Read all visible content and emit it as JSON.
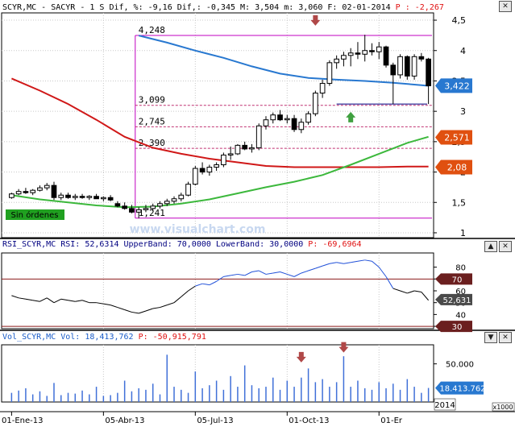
{
  "window": {
    "close_label": "✕",
    "maximize_label": "▲",
    "minimize_label": "▼"
  },
  "colors": {
    "background": "#ffffff",
    "grid": "#c8c8c8",
    "frame": "#000000",
    "price_header_label": "#000000",
    "price_header_value": "#e01010",
    "rsi_header_label": "#000080",
    "rsi_header_value": "#e01010",
    "vol_header_label": "#1a5cc8",
    "vol_header_value": "#e01010",
    "candle_up_fill": "#ffffff",
    "candle_down_fill": "#000000",
    "candle_outline": "#000000",
    "blue_ma": "#2878d0",
    "red_ma": "#d01818",
    "green_ma": "#3cb83c",
    "fib_lines": "#c03070",
    "box_frame": "#c000c0",
    "support_line": "#000080",
    "rsi_line_high": "#2050d8",
    "rsi_line_low": "#000000",
    "rsi_band_line": "#8b1a1a",
    "volume_bars": "#4070d8",
    "arrow_down": "#b04848",
    "arrow_up": "#40a040",
    "tag_blue": "#2878d0",
    "tag_red": "#e05010",
    "tag_dark": "#6b1f1f",
    "tag_gray": "#4a4a4a",
    "badge_green_bg": "#20a020",
    "watermark": "#c8d8f0"
  },
  "headers": {
    "price": {
      "label": "SCYR,MC - SACYR -  1 S Dif, %: -9,16 Dif,: -0,345 M: 3,504 m: 3,060 F: 02-01-2014",
      "value": "P : -2,267"
    },
    "rsi": {
      "label": "RSI_SCYR,MC RSI: 52,6314 UpperBand: 70,0000 LowerBand: 30,0000",
      "value": "P: -69,6964"
    },
    "vol": {
      "label": "Vol_SCYR,MC Vol: 18,413,762",
      "value": "P: -50,915,791"
    }
  },
  "watermark": "www.visualchart.com",
  "badge": "Sin órdenes",
  "chart_data": [
    {
      "type": "candlestick",
      "panel": "price",
      "ylim": [
        0.92,
        4.62
      ],
      "ytick_labels": [
        "4,5",
        "4",
        "3,5",
        "3",
        "2,5",
        "2",
        "1,5",
        "1"
      ],
      "ytick_values": [
        4.5,
        4.0,
        3.5,
        3.0,
        2.5,
        2.0,
        1.5,
        1.0
      ],
      "xtick_labels": [
        "01-Ene-13",
        "05-Abr-13",
        "05-Jul-13",
        "01-Oct-13",
        "01-Er"
      ],
      "year_label": "2014",
      "fib_levels": [
        {
          "label": "4,248",
          "value": 4.248
        },
        {
          "label": "3,099",
          "value": 3.099
        },
        {
          "label": "2,745",
          "value": 2.745
        },
        {
          "label": "2,390",
          "value": 2.39
        },
        {
          "label": "1,241",
          "value": 1.241
        }
      ],
      "price_tags": [
        {
          "label": "3,422",
          "value": 3.422,
          "color": "tag_blue"
        },
        {
          "label": "2,571",
          "value": 2.571,
          "color": "tag_red"
        },
        {
          "label": "2,08",
          "value": 2.08,
          "color": "tag_red"
        }
      ],
      "support_level": 3.12,
      "box": {
        "x_start_week": 18,
        "x_end_week": 53,
        "top": 4.248,
        "bottom": 1.241
      },
      "arrows": [
        {
          "type": "down",
          "week": 43,
          "value": 4.45
        },
        {
          "type": "up",
          "week": 48,
          "value": 2.95
        }
      ],
      "ohlc": [
        [
          1.58,
          1.66,
          1.56,
          1.64
        ],
        [
          1.64,
          1.72,
          1.62,
          1.68
        ],
        [
          1.68,
          1.74,
          1.64,
          1.66
        ],
        [
          1.66,
          1.72,
          1.62,
          1.7
        ],
        [
          1.7,
          1.78,
          1.68,
          1.74
        ],
        [
          1.74,
          1.82,
          1.7,
          1.78
        ],
        [
          1.78,
          1.84,
          1.54,
          1.58
        ],
        [
          1.58,
          1.66,
          1.54,
          1.62
        ],
        [
          1.62,
          1.66,
          1.56,
          1.58
        ],
        [
          1.58,
          1.64,
          1.54,
          1.6
        ],
        [
          1.6,
          1.64,
          1.56,
          1.58
        ],
        [
          1.58,
          1.62,
          1.54,
          1.6
        ],
        [
          1.6,
          1.64,
          1.56,
          1.56
        ],
        [
          1.56,
          1.6,
          1.52,
          1.58
        ],
        [
          1.58,
          1.62,
          1.52,
          1.54
        ],
        [
          1.48,
          1.52,
          1.42,
          1.44
        ],
        [
          1.44,
          1.5,
          1.38,
          1.4
        ],
        [
          1.4,
          1.46,
          1.32,
          1.34
        ],
        [
          1.34,
          1.42,
          1.24,
          1.38
        ],
        [
          1.38,
          1.46,
          1.34,
          1.4
        ],
        [
          1.4,
          1.48,
          1.36,
          1.44
        ],
        [
          1.44,
          1.52,
          1.4,
          1.48
        ],
        [
          1.48,
          1.56,
          1.44,
          1.52
        ],
        [
          1.52,
          1.6,
          1.48,
          1.56
        ],
        [
          1.56,
          1.66,
          1.52,
          1.62
        ],
        [
          1.62,
          1.84,
          1.6,
          1.8
        ],
        [
          1.8,
          2.1,
          1.78,
          2.06
        ],
        [
          2.06,
          2.16,
          1.96,
          2.0
        ],
        [
          2.0,
          2.12,
          1.94,
          2.08
        ],
        [
          2.08,
          2.16,
          2.02,
          2.12
        ],
        [
          2.12,
          2.32,
          2.08,
          2.28
        ],
        [
          2.28,
          2.42,
          2.2,
          2.3
        ],
        [
          2.3,
          2.46,
          2.28,
          2.44
        ],
        [
          2.44,
          2.5,
          2.36,
          2.38
        ],
        [
          2.38,
          2.46,
          2.32,
          2.4
        ],
        [
          2.4,
          2.8,
          2.36,
          2.76
        ],
        [
          2.76,
          2.92,
          2.7,
          2.86
        ],
        [
          2.86,
          2.98,
          2.8,
          2.94
        ],
        [
          2.94,
          3.02,
          2.84,
          2.86
        ],
        [
          2.86,
          2.94,
          2.8,
          2.88
        ],
        [
          2.88,
          2.94,
          2.66,
          2.7
        ],
        [
          2.7,
          2.88,
          2.64,
          2.82
        ],
        [
          2.82,
          3.0,
          2.78,
          2.96
        ],
        [
          2.96,
          3.34,
          2.92,
          3.3
        ],
        [
          3.3,
          3.52,
          3.22,
          3.46
        ],
        [
          3.46,
          3.84,
          3.42,
          3.8
        ],
        [
          3.8,
          3.92,
          3.7,
          3.86
        ],
        [
          3.86,
          3.98,
          3.74,
          3.92
        ],
        [
          3.92,
          4.04,
          3.74,
          3.96
        ],
        [
          3.96,
          4.14,
          3.86,
          3.94
        ],
        [
          3.94,
          4.26,
          3.82,
          4.0
        ],
        [
          4.0,
          4.12,
          3.92,
          3.98
        ],
        [
          3.98,
          4.14,
          3.86,
          4.06
        ],
        [
          4.06,
          4.08,
          3.72,
          3.76
        ],
        [
          3.76,
          3.8,
          3.12,
          3.6
        ],
        [
          3.6,
          3.94,
          3.54,
          3.9
        ],
        [
          3.9,
          3.92,
          3.52,
          3.58
        ],
        [
          3.58,
          3.94,
          3.52,
          3.9
        ],
        [
          3.9,
          3.96,
          3.82,
          3.86
        ],
        [
          3.86,
          3.88,
          3.12,
          3.42
        ]
      ],
      "ma_blue": [
        [
          18,
          4.248
        ],
        [
          22,
          4.13
        ],
        [
          26,
          4.0
        ],
        [
          30,
          3.88
        ],
        [
          34,
          3.74
        ],
        [
          38,
          3.62
        ],
        [
          42,
          3.55
        ],
        [
          46,
          3.52
        ],
        [
          50,
          3.5
        ],
        [
          54,
          3.47
        ],
        [
          57,
          3.44
        ],
        [
          59,
          3.42
        ]
      ],
      "ma_red": [
        [
          0,
          3.54
        ],
        [
          4,
          3.34
        ],
        [
          8,
          3.12
        ],
        [
          12,
          2.86
        ],
        [
          16,
          2.58
        ],
        [
          20,
          2.4
        ],
        [
          24,
          2.3
        ],
        [
          28,
          2.22
        ],
        [
          32,
          2.16
        ],
        [
          36,
          2.1
        ],
        [
          40,
          2.08
        ],
        [
          44,
          2.08
        ],
        [
          48,
          2.08
        ],
        [
          52,
          2.08
        ],
        [
          56,
          2.09
        ],
        [
          59,
          2.09
        ]
      ],
      "ma_green": [
        [
          0,
          1.62
        ],
        [
          4,
          1.55
        ],
        [
          8,
          1.5
        ],
        [
          12,
          1.45
        ],
        [
          16,
          1.42
        ],
        [
          20,
          1.43
        ],
        [
          24,
          1.48
        ],
        [
          28,
          1.55
        ],
        [
          32,
          1.65
        ],
        [
          36,
          1.75
        ],
        [
          40,
          1.84
        ],
        [
          44,
          1.95
        ],
        [
          48,
          2.12
        ],
        [
          52,
          2.3
        ],
        [
          56,
          2.48
        ],
        [
          59,
          2.58
        ]
      ]
    },
    {
      "type": "line",
      "panel": "rsi",
      "ylim": [
        28,
        92
      ],
      "ytick_labels": [
        "80",
        "70",
        "60",
        "50",
        "40",
        "30"
      ],
      "ytick_values": [
        80,
        70,
        60,
        50,
        40,
        30
      ],
      "bands": [
        70,
        30
      ],
      "value_tags": [
        {
          "label": "70",
          "value": 70,
          "color": "tag_dark"
        },
        {
          "label": "52,631",
          "value": 52.631,
          "color": "tag_gray"
        },
        {
          "label": "30",
          "value": 30,
          "color": "tag_dark"
        }
      ],
      "values": [
        56,
        54,
        53,
        52,
        51,
        54,
        50,
        53,
        52,
        51,
        52,
        50,
        50,
        49,
        48,
        46,
        44,
        42,
        41,
        43,
        45,
        46,
        48,
        50,
        55,
        60,
        64,
        66,
        65,
        68,
        72,
        73,
        74,
        73,
        76,
        77,
        74,
        75,
        76,
        74,
        72,
        75,
        77,
        79,
        81,
        83,
        84,
        83,
        84,
        85,
        86,
        85,
        80,
        72,
        62,
        60,
        58,
        60,
        59,
        52
      ]
    },
    {
      "type": "bar",
      "panel": "volume",
      "ylim": [
        0,
        75000000
      ],
      "ytick_labels": [
        "50.000"
      ],
      "ytick_values": [
        50000000
      ],
      "value_tag": {
        "label": "18.413.762",
        "value": 18413762,
        "color": "tag_blue"
      },
      "scale_label": "x1000",
      "arrows": [
        {
          "type": "down",
          "week": 41,
          "value": 55000000
        },
        {
          "type": "down",
          "week": 47,
          "value": 68000000
        }
      ],
      "values": [
        12000000,
        15000000,
        18000000,
        10000000,
        14000000,
        8000000,
        25000000,
        9000000,
        12000000,
        11000000,
        15000000,
        10000000,
        20000000,
        8000000,
        9000000,
        12000000,
        28000000,
        14000000,
        18000000,
        16000000,
        24000000,
        10000000,
        62000000,
        20000000,
        16000000,
        12000000,
        40000000,
        18000000,
        22000000,
        28000000,
        16000000,
        34000000,
        20000000,
        48000000,
        22000000,
        18000000,
        20000000,
        32000000,
        16000000,
        28000000,
        20000000,
        32000000,
        44000000,
        26000000,
        30000000,
        20000000,
        26000000,
        60000000,
        20000000,
        28000000,
        18000000,
        16000000,
        26000000,
        18000000,
        24000000,
        16000000,
        30000000,
        20000000,
        12000000,
        18413762
      ]
    }
  ]
}
